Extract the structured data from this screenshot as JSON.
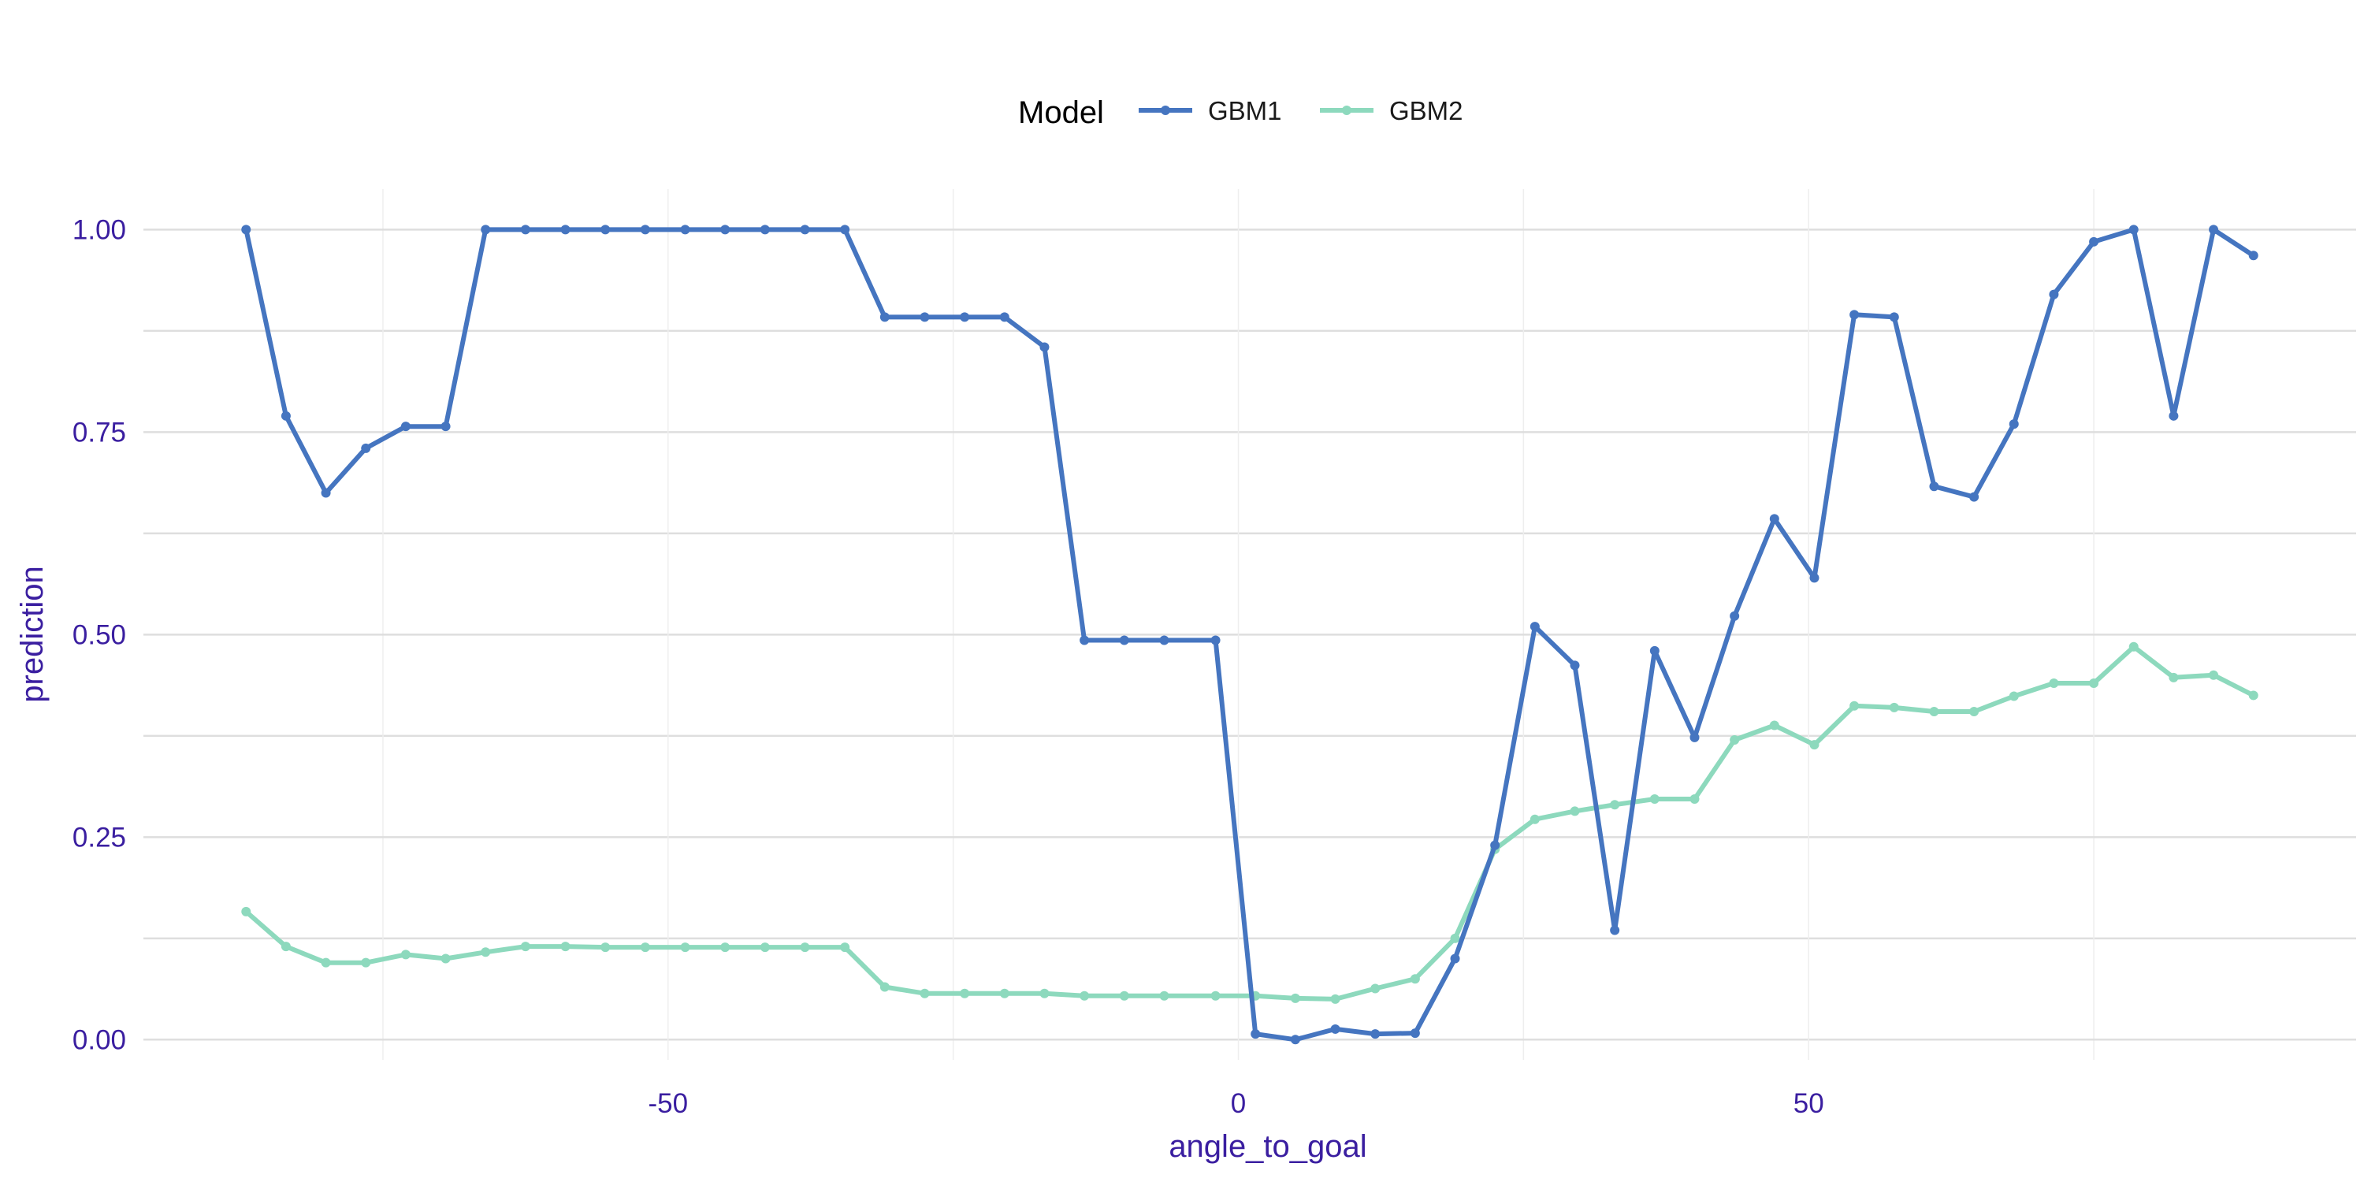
{
  "chart_data": {
    "type": "line",
    "xlabel": "angle_to_goal",
    "ylabel": "prediction",
    "xlim": [
      -96,
      98
    ],
    "ylim": [
      -0.025,
      1.05
    ],
    "x_ticks": [
      -50,
      0,
      50
    ],
    "x_minor_ticks": [
      -75,
      -25,
      25,
      75
    ],
    "y_ticks": [
      0.0,
      0.25,
      0.5,
      0.75,
      1.0
    ],
    "y_tick_labels": [
      "0.00",
      "0.25",
      "0.50",
      "0.75",
      "1.00"
    ],
    "y_minor_ticks": [
      0.125,
      0.375,
      0.625,
      0.875
    ],
    "grid": true,
    "legend": {
      "title": "Model",
      "position": "top"
    },
    "x": [
      -87.0,
      -83.5,
      -80.0,
      -76.5,
      -73.0,
      -69.5,
      -66.0,
      -62.5,
      -59.0,
      -55.5,
      -52.0,
      -48.5,
      -45.0,
      -41.5,
      -38.0,
      -34.5,
      -31.0,
      -27.5,
      -24.0,
      -20.5,
      -17.0,
      -13.5,
      -10.0,
      -6.5,
      -2.0,
      1.5,
      5.0,
      8.5,
      12.0,
      15.5,
      19.0,
      22.5,
      26.0,
      29.5,
      33.0,
      36.5,
      40.0,
      43.5,
      47.0,
      50.5,
      54.0,
      57.5,
      61.0,
      64.5,
      68.0,
      71.5,
      75.0,
      78.5,
      82.0,
      85.5,
      89.0
    ],
    "series": [
      {
        "name": "GBM1",
        "color": "#4575c0",
        "values": [
          1.0,
          0.77,
          0.675,
          0.73,
          0.757,
          0.757,
          1.0,
          1.0,
          1.0,
          1.0,
          1.0,
          1.0,
          1.0,
          1.0,
          1.0,
          1.0,
          0.892,
          0.892,
          0.892,
          0.892,
          0.855,
          0.493,
          0.493,
          0.493,
          0.493,
          0.007,
          0.0,
          0.013,
          0.007,
          0.008,
          0.1,
          0.24,
          0.51,
          0.462,
          0.135,
          0.48,
          0.373,
          0.523,
          0.643,
          0.57,
          0.895,
          0.892,
          0.683,
          0.67,
          0.76,
          0.92,
          0.985,
          1.0,
          0.77,
          1.0,
          0.968
        ]
      },
      {
        "name": "GBM2",
        "color": "#8dd9bd",
        "values": [
          0.158,
          0.115,
          0.095,
          0.095,
          0.105,
          0.1,
          0.108,
          0.115,
          0.115,
          0.114,
          0.114,
          0.114,
          0.114,
          0.114,
          0.114,
          0.114,
          0.065,
          0.057,
          0.057,
          0.057,
          0.057,
          0.054,
          0.054,
          0.054,
          0.054,
          0.054,
          0.051,
          0.05,
          0.063,
          0.075,
          0.125,
          0.235,
          0.272,
          0.282,
          0.29,
          0.297,
          0.297,
          0.37,
          0.388,
          0.364,
          0.412,
          0.41,
          0.405,
          0.405,
          0.424,
          0.44,
          0.44,
          0.485,
          0.447,
          0.45,
          0.425
        ]
      }
    ]
  }
}
